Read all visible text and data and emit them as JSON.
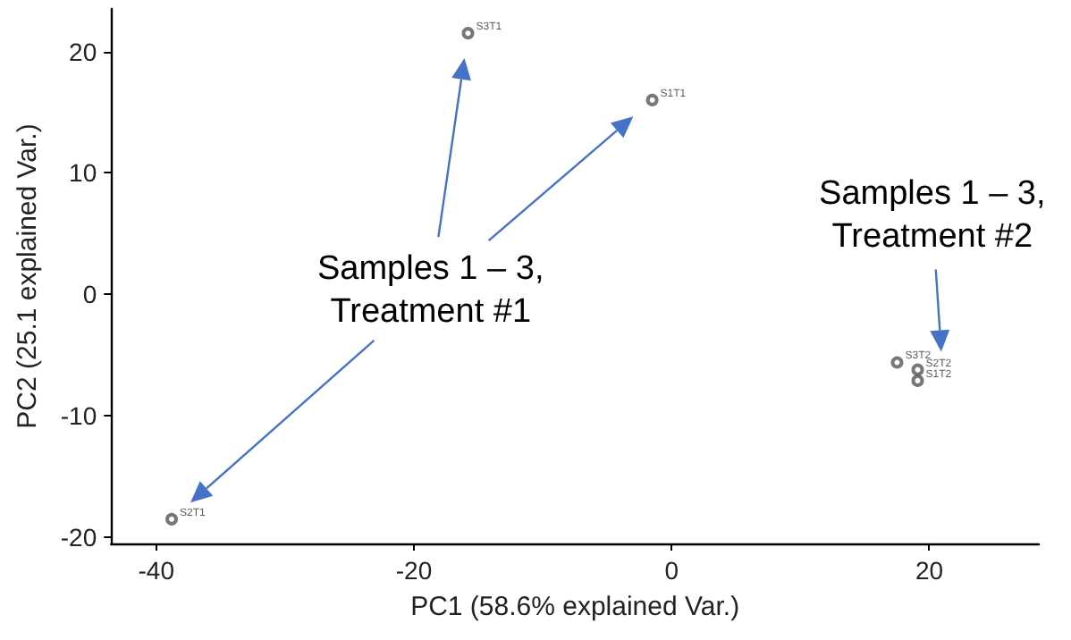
{
  "chart_data": {
    "type": "scatter",
    "xlabel": "PC1 (58.6% explained Var.)",
    "ylabel": "PC2 (25.1 explained Var.)",
    "series": [
      {
        "color": "#555555",
        "x": [
          -15.8,
          -1.5,
          -38.8
        ],
        "values": [
          21.5,
          16.0,
          -18.5
        ],
        "value_labels": [
          "S3T1",
          "S1T1",
          "S2T1"
        ]
      },
      {
        "color": "#555555",
        "x": [
          17.5,
          19.1,
          19.1
        ],
        "values": [
          -5.6,
          -6.2,
          -7.1
        ],
        "value_labels": [
          "S3T2",
          "S2T2",
          "S1T2"
        ]
      }
    ],
    "annotations": [
      "Samples 1 – 3,\nTreatment #1",
      "Samples 1 – 3,\nTreatment #2"
    ],
    "xlim": [
      -43.5,
      28.5
    ],
    "xticks": [
      -40,
      -20,
      0,
      20
    ],
    "ylim": [
      -20.5,
      23.5
    ],
    "yticks": [
      -20,
      -10,
      0,
      10,
      20
    ],
    "grid": false,
    "marker": "circle"
  }
}
